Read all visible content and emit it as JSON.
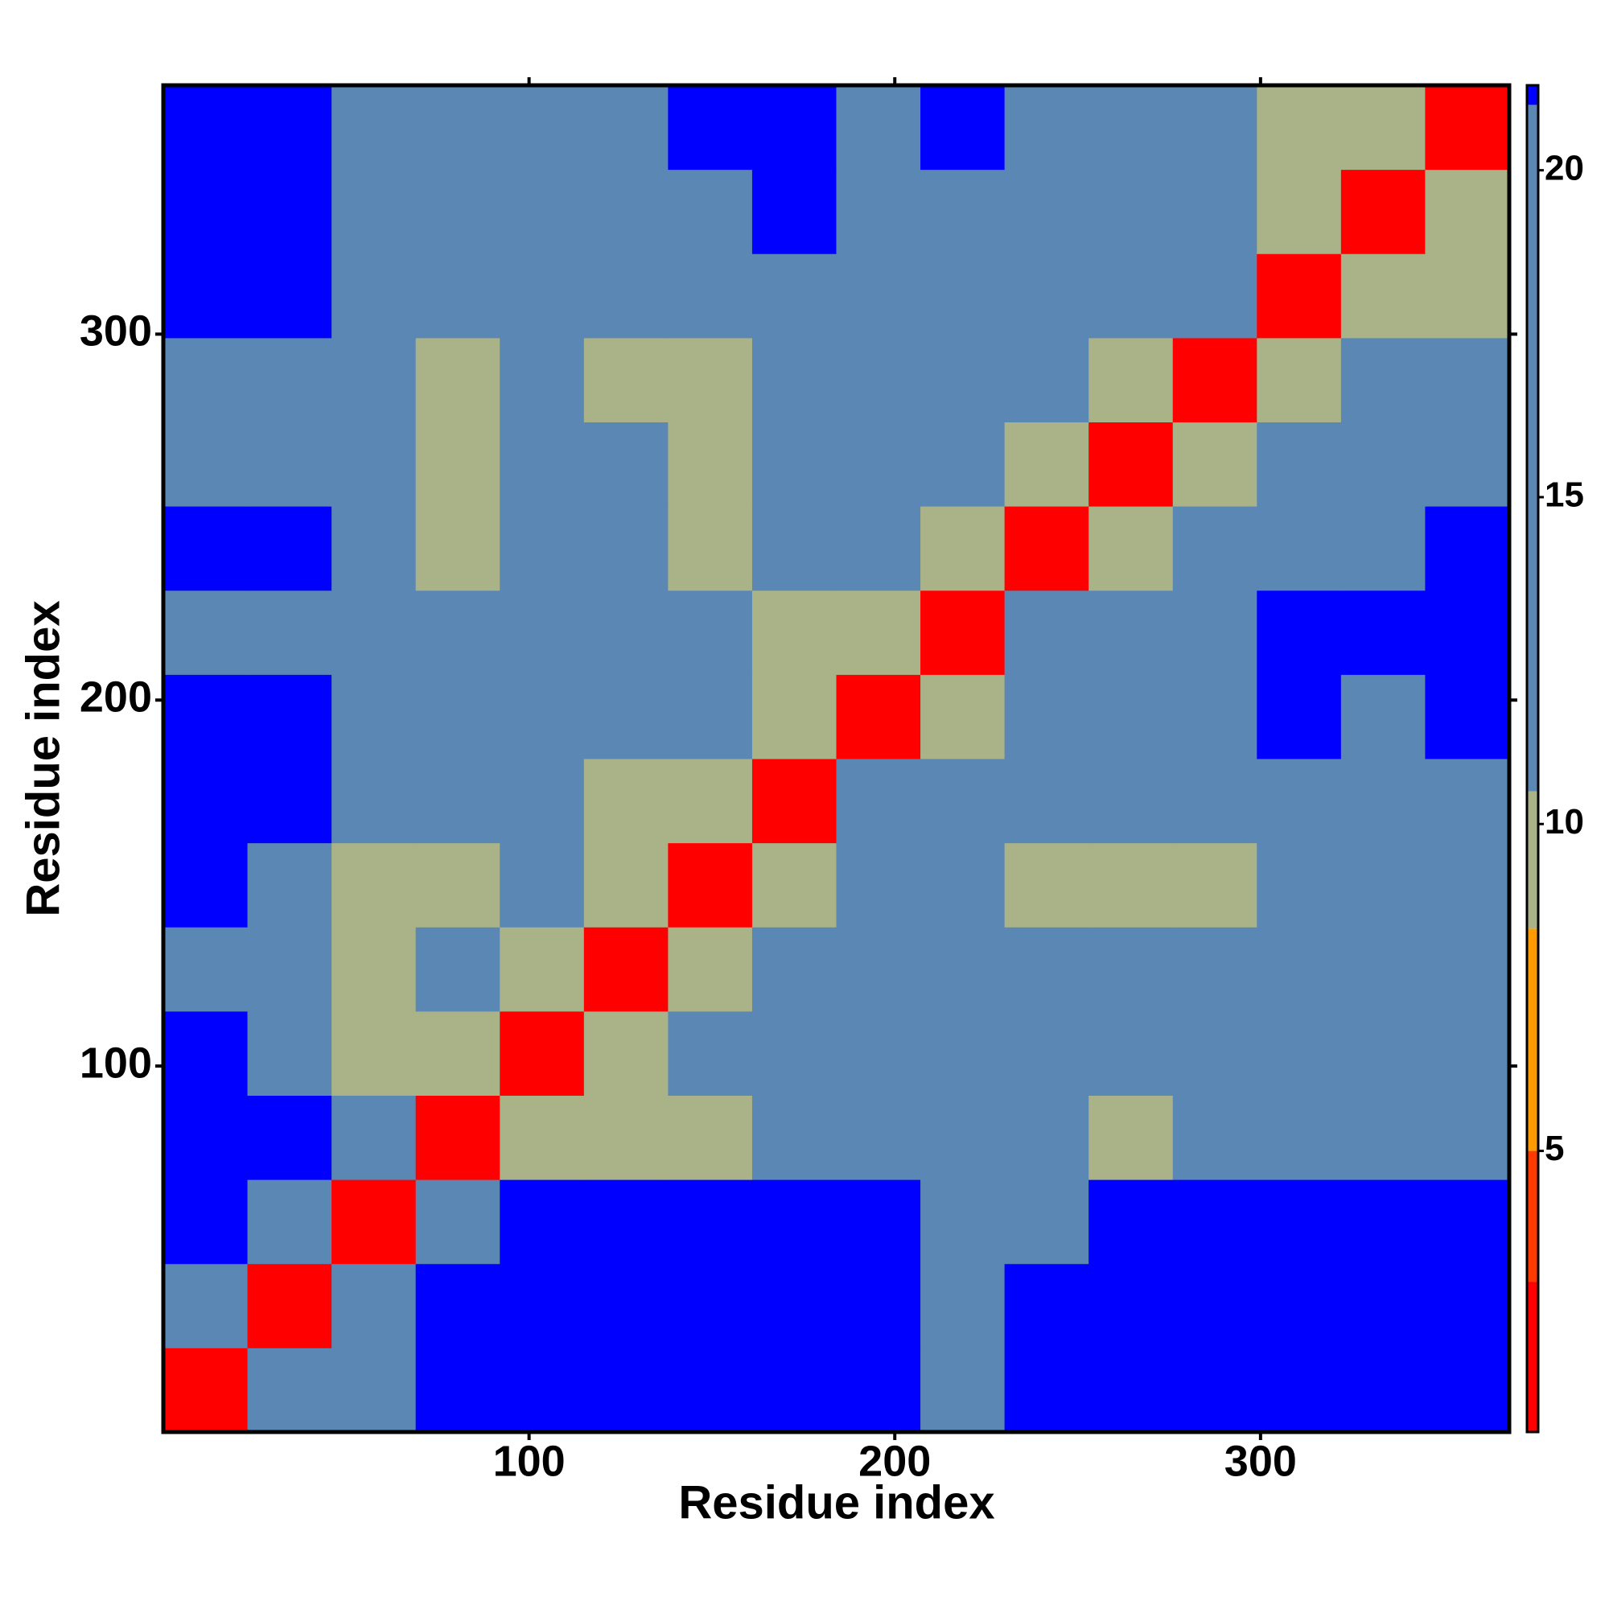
{
  "chart_data": {
    "type": "heatmap",
    "x_label": "Residue index",
    "y_label": "Residue index",
    "x_edges": [
      0,
      23,
      46,
      69,
      92,
      115,
      138,
      161,
      184,
      207,
      230,
      253,
      276,
      299,
      322,
      345,
      368
    ],
    "y_edges": [
      0,
      23,
      46,
      69,
      92,
      115,
      138,
      161,
      184,
      207,
      230,
      253,
      276,
      299,
      322,
      345,
      368
    ],
    "z": [
      [
        3,
        16,
        16,
        22,
        22,
        22,
        22,
        22,
        22,
        16,
        22,
        22,
        22,
        22,
        22,
        22
      ],
      [
        16,
        3,
        16,
        22,
        22,
        22,
        22,
        22,
        22,
        16,
        22,
        22,
        22,
        22,
        22,
        22
      ],
      [
        22,
        16,
        3,
        16,
        22,
        22,
        22,
        22,
        22,
        16,
        16,
        22,
        22,
        22,
        22,
        22
      ],
      [
        22,
        22,
        16,
        3,
        10,
        10,
        10,
        16,
        16,
        16,
        16,
        10,
        16,
        16,
        20,
        16
      ],
      [
        22,
        20,
        10,
        10,
        3,
        10,
        16,
        16,
        20,
        16,
        16,
        16,
        16,
        20,
        20,
        16
      ],
      [
        20,
        16,
        10,
        16,
        10,
        3,
        10,
        16,
        20,
        20,
        16,
        16,
        16,
        16,
        20,
        16
      ],
      [
        22,
        20,
        10,
        10,
        16,
        10,
        3,
        10,
        20,
        16,
        10,
        10,
        10,
        20,
        16,
        16
      ],
      [
        22,
        22,
        16,
        16,
        16,
        10,
        10,
        3,
        20,
        20,
        16,
        20,
        16,
        16,
        16,
        16
      ],
      [
        22,
        22,
        16,
        20,
        20,
        16,
        20,
        10,
        3,
        10,
        20,
        16,
        20,
        22,
        20,
        22
      ],
      [
        20,
        16,
        16,
        16,
        16,
        20,
        16,
        10,
        10,
        3,
        16,
        20,
        16,
        22,
        22,
        22
      ],
      [
        22,
        22,
        16,
        10,
        16,
        16,
        10,
        16,
        20,
        10,
        3,
        10,
        16,
        20,
        20,
        22
      ],
      [
        20,
        20,
        16,
        10,
        16,
        16,
        10,
        20,
        20,
        16,
        10,
        3,
        10,
        16,
        16,
        16
      ],
      [
        20,
        20,
        16,
        10,
        16,
        10,
        10,
        16,
        20,
        20,
        16,
        10,
        3,
        10,
        16,
        16
      ],
      [
        22,
        22,
        16,
        16,
        16,
        20,
        20,
        20,
        20,
        20,
        16,
        16,
        16,
        3,
        10,
        10
      ],
      [
        22,
        22,
        16,
        20,
        16,
        20,
        20,
        22,
        20,
        20,
        20,
        16,
        16,
        10,
        3,
        10
      ],
      [
        22,
        22,
        20,
        20,
        20,
        20,
        22,
        22,
        20,
        22,
        16,
        16,
        16,
        10,
        10,
        3
      ]
    ],
    "xlim": [
      0,
      368
    ],
    "ylim": [
      0,
      368
    ],
    "xticks": [
      100,
      200,
      300
    ],
    "yticks": [
      100,
      200,
      300
    ],
    "zlim": [
      0.7,
      21.3
    ],
    "zticks": [
      5,
      10,
      15,
      20
    ],
    "colorscale": [
      {
        "upto": 3,
        "color": "#ff0000"
      },
      {
        "upto": 5,
        "color": "#ff3a00"
      },
      {
        "upto": 8.4,
        "color": "#ff9a00"
      },
      {
        "upto": 10.5,
        "color": "#a9b387"
      },
      {
        "upto": 21,
        "color": "#5b87b5"
      },
      {
        "upto": 21.3,
        "color": "#0000ff"
      }
    ]
  }
}
